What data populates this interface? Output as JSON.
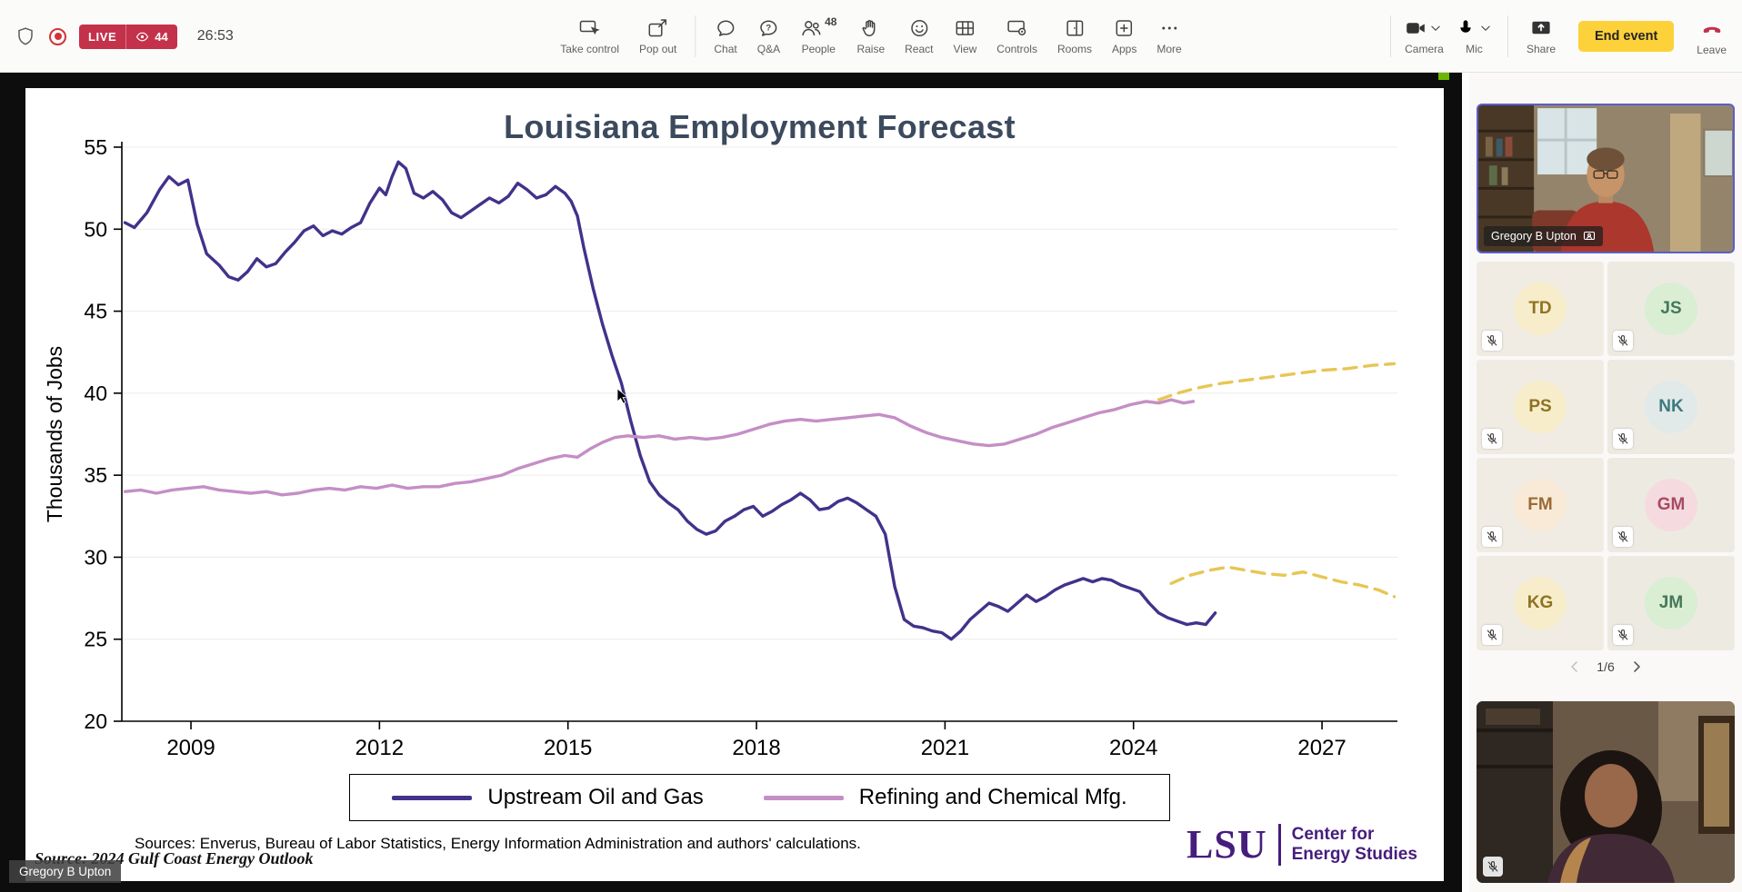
{
  "meeting_bar": {
    "timer": "26:53",
    "live_badge": {
      "label": "LIVE",
      "viewer_count": "44",
      "color": "#c4314b",
      "eye_icon": "eye-icon"
    },
    "record_indicator_color": "#d13438",
    "items": [
      {
        "label": "Take control",
        "icon": "take-control-icon"
      },
      {
        "label": "Pop out",
        "icon": "pop-out-icon"
      },
      {
        "label": "Chat",
        "icon": "chat-icon"
      },
      {
        "label": "Q&A",
        "icon": "qa-icon"
      },
      {
        "label": "People",
        "icon": "people-icon",
        "badge": "48"
      },
      {
        "label": "Raise",
        "icon": "raise-hand-icon"
      },
      {
        "label": "React",
        "icon": "react-icon"
      },
      {
        "label": "View",
        "icon": "view-icon"
      },
      {
        "label": "Controls",
        "icon": "controls-icon"
      },
      {
        "label": "Rooms",
        "icon": "rooms-icon"
      },
      {
        "label": "Apps",
        "icon": "apps-icon"
      },
      {
        "label": "More",
        "icon": "more-icon"
      }
    ],
    "camera": {
      "label": "Camera",
      "icon": "camera-icon"
    },
    "mic": {
      "label": "Mic",
      "icon": "mic-muted-icon"
    },
    "share": {
      "label": "Share",
      "icon": "share-screen-icon"
    },
    "end_event": {
      "label": "End event",
      "color": "#fdd13a"
    },
    "leave": {
      "label": "Leave",
      "icon": "leave-call-icon",
      "color": "#c4314b"
    }
  },
  "stage": {
    "presenter_overlay": "Gregory B Upton",
    "share_indicator_color": "#6bb700"
  },
  "slide": {
    "title": "Louisiana Employment Forecast",
    "sources_note": "Sources: Enverus, Bureau of Labor Statistics, Energy Information Administration and authors' calculations.",
    "source_caption": "Source: 2024 Gulf Coast Energy Outlook",
    "logo": {
      "abbr": "LSU",
      "line1": "Center for",
      "line2": "Energy Studies",
      "color": "#461d7c"
    }
  },
  "chart_data": {
    "type": "line",
    "title": "Louisiana Employment Forecast",
    "xlabel": "",
    "ylabel": "Thousands of Jobs",
    "xlim": [
      2007.9,
      2028.2
    ],
    "ylim": [
      20,
      55
    ],
    "xticks": [
      2009,
      2012,
      2015,
      2018,
      2021,
      2024,
      2027
    ],
    "yticks": [
      20,
      25,
      30,
      35,
      40,
      45,
      50,
      55
    ],
    "grid": "horizontal-faint",
    "legend_position": "bottom",
    "series": [
      {
        "name": "Upstream Oil and Gas",
        "color": "#43318b",
        "style": "solid",
        "points": [
          [
            2007.95,
            50.4
          ],
          [
            2008.1,
            50.1
          ],
          [
            2008.3,
            51.0
          ],
          [
            2008.5,
            52.4
          ],
          [
            2008.65,
            53.2
          ],
          [
            2008.8,
            52.7
          ],
          [
            2008.95,
            53.0
          ],
          [
            2009.1,
            50.3
          ],
          [
            2009.25,
            48.5
          ],
          [
            2009.45,
            47.8
          ],
          [
            2009.6,
            47.1
          ],
          [
            2009.75,
            46.9
          ],
          [
            2009.9,
            47.4
          ],
          [
            2010.05,
            48.2
          ],
          [
            2010.2,
            47.7
          ],
          [
            2010.35,
            47.9
          ],
          [
            2010.5,
            48.6
          ],
          [
            2010.65,
            49.2
          ],
          [
            2010.8,
            49.9
          ],
          [
            2010.95,
            50.2
          ],
          [
            2011.1,
            49.6
          ],
          [
            2011.25,
            49.9
          ],
          [
            2011.4,
            49.7
          ],
          [
            2011.55,
            50.1
          ],
          [
            2011.7,
            50.4
          ],
          [
            2011.85,
            51.6
          ],
          [
            2012.0,
            52.5
          ],
          [
            2012.1,
            52.1
          ],
          [
            2012.2,
            53.2
          ],
          [
            2012.3,
            54.1
          ],
          [
            2012.42,
            53.7
          ],
          [
            2012.55,
            52.2
          ],
          [
            2012.7,
            51.9
          ],
          [
            2012.85,
            52.3
          ],
          [
            2013.0,
            51.8
          ],
          [
            2013.15,
            51.0
          ],
          [
            2013.3,
            50.7
          ],
          [
            2013.45,
            51.1
          ],
          [
            2013.6,
            51.5
          ],
          [
            2013.75,
            51.9
          ],
          [
            2013.9,
            51.6
          ],
          [
            2014.05,
            52.0
          ],
          [
            2014.2,
            52.8
          ],
          [
            2014.35,
            52.4
          ],
          [
            2014.5,
            51.9
          ],
          [
            2014.65,
            52.1
          ],
          [
            2014.8,
            52.6
          ],
          [
            2014.95,
            52.2
          ],
          [
            2015.05,
            51.7
          ],
          [
            2015.15,
            50.8
          ],
          [
            2015.25,
            48.9
          ],
          [
            2015.4,
            46.4
          ],
          [
            2015.55,
            44.2
          ],
          [
            2015.7,
            42.3
          ],
          [
            2015.85,
            40.6
          ],
          [
            2016.0,
            38.3
          ],
          [
            2016.15,
            36.2
          ],
          [
            2016.3,
            34.6
          ],
          [
            2016.45,
            33.8
          ],
          [
            2016.6,
            33.3
          ],
          [
            2016.75,
            32.9
          ],
          [
            2016.9,
            32.2
          ],
          [
            2017.05,
            31.7
          ],
          [
            2017.2,
            31.4
          ],
          [
            2017.35,
            31.6
          ],
          [
            2017.5,
            32.2
          ],
          [
            2017.65,
            32.5
          ],
          [
            2017.8,
            32.9
          ],
          [
            2017.95,
            33.1
          ],
          [
            2018.1,
            32.5
          ],
          [
            2018.25,
            32.8
          ],
          [
            2018.4,
            33.2
          ],
          [
            2018.55,
            33.5
          ],
          [
            2018.7,
            33.9
          ],
          [
            2018.85,
            33.5
          ],
          [
            2019.0,
            32.9
          ],
          [
            2019.15,
            33.0
          ],
          [
            2019.3,
            33.4
          ],
          [
            2019.45,
            33.6
          ],
          [
            2019.6,
            33.3
          ],
          [
            2019.75,
            32.9
          ],
          [
            2019.9,
            32.5
          ],
          [
            2020.05,
            31.4
          ],
          [
            2020.2,
            28.2
          ],
          [
            2020.35,
            26.2
          ],
          [
            2020.5,
            25.8
          ],
          [
            2020.65,
            25.7
          ],
          [
            2020.8,
            25.5
          ],
          [
            2020.95,
            25.4
          ],
          [
            2021.1,
            25.0
          ],
          [
            2021.25,
            25.5
          ],
          [
            2021.4,
            26.2
          ],
          [
            2021.55,
            26.7
          ],
          [
            2021.7,
            27.2
          ],
          [
            2021.85,
            27.0
          ],
          [
            2022.0,
            26.7
          ],
          [
            2022.15,
            27.2
          ],
          [
            2022.3,
            27.7
          ],
          [
            2022.45,
            27.3
          ],
          [
            2022.6,
            27.6
          ],
          [
            2022.75,
            28.0
          ],
          [
            2022.9,
            28.3
          ],
          [
            2023.05,
            28.5
          ],
          [
            2023.2,
            28.7
          ],
          [
            2023.35,
            28.5
          ],
          [
            2023.5,
            28.7
          ],
          [
            2023.65,
            28.6
          ],
          [
            2023.8,
            28.3
          ],
          [
            2023.95,
            28.1
          ],
          [
            2024.1,
            27.9
          ],
          [
            2024.25,
            27.2
          ],
          [
            2024.4,
            26.6
          ],
          [
            2024.55,
            26.3
          ],
          [
            2024.7,
            26.1
          ],
          [
            2024.85,
            25.9
          ],
          [
            2025.0,
            26.0
          ],
          [
            2025.15,
            25.9
          ],
          [
            2025.3,
            26.6
          ]
        ]
      },
      {
        "name": "Refining and Chemical Mfg.",
        "color": "#c58ec6",
        "style": "solid",
        "points": [
          [
            2007.95,
            34.0
          ],
          [
            2008.2,
            34.1
          ],
          [
            2008.45,
            33.9
          ],
          [
            2008.7,
            34.1
          ],
          [
            2008.95,
            34.2
          ],
          [
            2009.2,
            34.3
          ],
          [
            2009.45,
            34.1
          ],
          [
            2009.7,
            34.0
          ],
          [
            2009.95,
            33.9
          ],
          [
            2010.2,
            34.0
          ],
          [
            2010.45,
            33.8
          ],
          [
            2010.7,
            33.9
          ],
          [
            2010.95,
            34.1
          ],
          [
            2011.2,
            34.2
          ],
          [
            2011.45,
            34.1
          ],
          [
            2011.7,
            34.3
          ],
          [
            2011.95,
            34.2
          ],
          [
            2012.2,
            34.4
          ],
          [
            2012.45,
            34.2
          ],
          [
            2012.7,
            34.3
          ],
          [
            2012.95,
            34.3
          ],
          [
            2013.2,
            34.5
          ],
          [
            2013.45,
            34.6
          ],
          [
            2013.7,
            34.8
          ],
          [
            2013.95,
            35.0
          ],
          [
            2014.2,
            35.4
          ],
          [
            2014.45,
            35.7
          ],
          [
            2014.7,
            36.0
          ],
          [
            2014.95,
            36.2
          ],
          [
            2015.15,
            36.1
          ],
          [
            2015.35,
            36.6
          ],
          [
            2015.55,
            37.0
          ],
          [
            2015.75,
            37.3
          ],
          [
            2015.95,
            37.4
          ],
          [
            2016.2,
            37.3
          ],
          [
            2016.45,
            37.4
          ],
          [
            2016.7,
            37.2
          ],
          [
            2016.95,
            37.3
          ],
          [
            2017.2,
            37.2
          ],
          [
            2017.45,
            37.3
          ],
          [
            2017.7,
            37.5
          ],
          [
            2017.95,
            37.8
          ],
          [
            2018.2,
            38.1
          ],
          [
            2018.45,
            38.3
          ],
          [
            2018.7,
            38.4
          ],
          [
            2018.95,
            38.3
          ],
          [
            2019.2,
            38.4
          ],
          [
            2019.45,
            38.5
          ],
          [
            2019.7,
            38.6
          ],
          [
            2019.95,
            38.7
          ],
          [
            2020.2,
            38.5
          ],
          [
            2020.45,
            38.0
          ],
          [
            2020.7,
            37.6
          ],
          [
            2020.95,
            37.3
          ],
          [
            2021.2,
            37.1
          ],
          [
            2021.45,
            36.9
          ],
          [
            2021.7,
            36.8
          ],
          [
            2021.95,
            36.9
          ],
          [
            2022.2,
            37.2
          ],
          [
            2022.45,
            37.5
          ],
          [
            2022.7,
            37.9
          ],
          [
            2022.95,
            38.2
          ],
          [
            2023.2,
            38.5
          ],
          [
            2023.45,
            38.8
          ],
          [
            2023.7,
            39.0
          ],
          [
            2023.95,
            39.3
          ],
          [
            2024.2,
            39.5
          ],
          [
            2024.4,
            39.4
          ],
          [
            2024.6,
            39.6
          ],
          [
            2024.8,
            39.4
          ],
          [
            2024.95,
            39.5
          ]
        ]
      },
      {
        "name": "Upstream Oil and Gas (forecast)",
        "color": "#e7c654",
        "style": "dashed",
        "points": [
          [
            2024.6,
            28.4
          ],
          [
            2024.9,
            28.9
          ],
          [
            2025.2,
            29.2
          ],
          [
            2025.5,
            29.4
          ],
          [
            2025.8,
            29.2
          ],
          [
            2026.1,
            29.0
          ],
          [
            2026.4,
            28.9
          ],
          [
            2026.7,
            29.1
          ],
          [
            2027.0,
            28.8
          ],
          [
            2027.3,
            28.5
          ],
          [
            2027.6,
            28.3
          ],
          [
            2027.9,
            28.0
          ],
          [
            2028.15,
            27.6
          ]
        ]
      },
      {
        "name": "Refining and Chemical Mfg. (forecast)",
        "color": "#e7c654",
        "style": "dashed",
        "points": [
          [
            2024.4,
            39.6
          ],
          [
            2024.7,
            40.0
          ],
          [
            2025.0,
            40.3
          ],
          [
            2025.4,
            40.6
          ],
          [
            2025.8,
            40.8
          ],
          [
            2026.2,
            41.0
          ],
          [
            2026.6,
            41.2
          ],
          [
            2027.0,
            41.4
          ],
          [
            2027.4,
            41.5
          ],
          [
            2027.8,
            41.7
          ],
          [
            2028.15,
            41.8
          ]
        ]
      }
    ]
  },
  "sidebar": {
    "speaker": {
      "name": "Gregory B Upton"
    },
    "participants": [
      {
        "initials": "TD",
        "circle_bg": "#f7edca",
        "initial_color": "#8f7322",
        "tile_bg": "#f0ece3"
      },
      {
        "initials": "JS",
        "circle_bg": "#d9eed3",
        "initial_color": "#45785a",
        "tile_bg": "#edeae2"
      },
      {
        "initials": "PS",
        "circle_bg": "#f7edca",
        "initial_color": "#8f7322",
        "tile_bg": "#f0ece3"
      },
      {
        "initials": "NK",
        "circle_bg": "#e2e9e9",
        "initial_color": "#3e7a80",
        "tile_bg": "#edeae2"
      },
      {
        "initials": "FM",
        "circle_bg": "#f9ead8",
        "initial_color": "#9a6a33",
        "tile_bg": "#f0ece3"
      },
      {
        "initials": "GM",
        "circle_bg": "#f5dbe0",
        "initial_color": "#a84a63",
        "tile_bg": "#edeae2"
      },
      {
        "initials": "KG",
        "circle_bg": "#f7edca",
        "initial_color": "#8f7322",
        "tile_bg": "#f0ece3"
      },
      {
        "initials": "JM",
        "circle_bg": "#d9eed3",
        "initial_color": "#45785a",
        "tile_bg": "#edeae2"
      }
    ],
    "pagination": {
      "current": "1/6"
    }
  }
}
